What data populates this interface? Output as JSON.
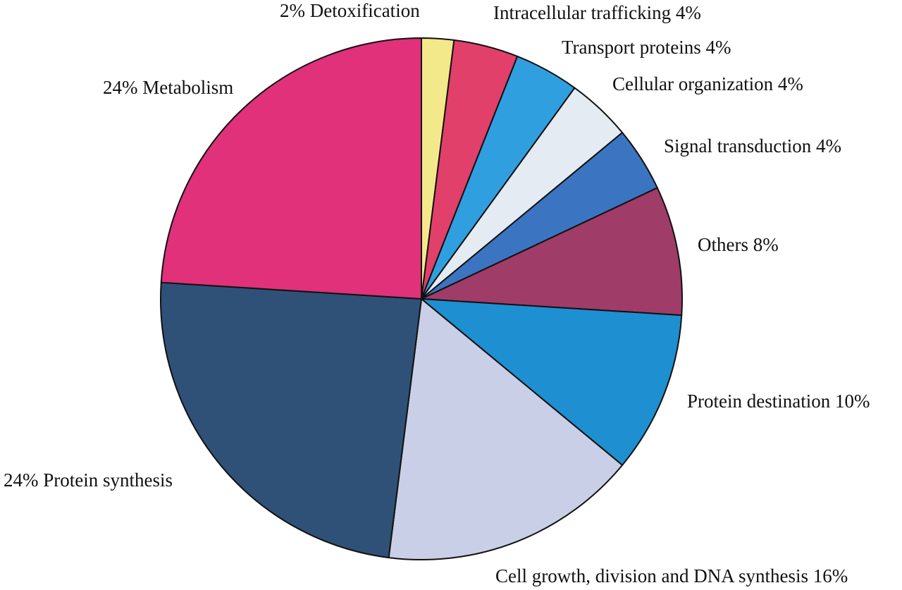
{
  "chart_data": {
    "type": "pie",
    "title": "",
    "start_angle_deg": 0,
    "direction": "clockwise",
    "slices": [
      {
        "label": "Detoxification",
        "value": 2,
        "text": "2% Detoxification",
        "color": "#f4e98a"
      },
      {
        "label": "Intracellular trafficking",
        "value": 4,
        "text": "Intracellular trafficking 4%",
        "color": "#e0406a"
      },
      {
        "label": "Transport proteins",
        "value": 4,
        "text": "Transport proteins  4%",
        "color": "#2f9fe0"
      },
      {
        "label": "Cellular organization",
        "value": 4,
        "text": "Cellular  organization 4%",
        "color": "#e4ebf2"
      },
      {
        "label": "Signal transduction",
        "value": 4,
        "text": "Signal transduction 4%",
        "color": "#3b75c2"
      },
      {
        "label": "Others",
        "value": 8,
        "text": "Others  8%",
        "color": "#a03c68"
      },
      {
        "label": "Protein destination",
        "value": 10,
        "text": "Protein destination 10%",
        "color": "#1e8fd0"
      },
      {
        "label": "Cell growth, division and DNA synthesis",
        "value": 16,
        "text": "Cell growth, division and DNA synthesis  16%",
        "color": "#c8cfe6"
      },
      {
        "label": "Protein synthesis",
        "value": 24,
        "text": "24%  Protein synthesis",
        "color": "#2f5177"
      },
      {
        "label": "Metabolism",
        "value": 24,
        "text": "24% Metabolism",
        "color": "#e0317a"
      }
    ]
  }
}
